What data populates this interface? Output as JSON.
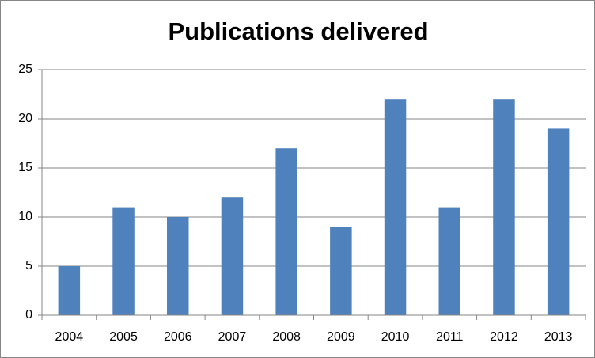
{
  "chart_data": {
    "type": "bar",
    "title": "Publications delivered",
    "categories": [
      "2004",
      "2005",
      "2006",
      "2007",
      "2008",
      "2009",
      "2010",
      "2011",
      "2012",
      "2013"
    ],
    "values": [
      5,
      11,
      10,
      12,
      17,
      9,
      22,
      11,
      22,
      19
    ],
    "color": "#4f81bd",
    "ylim": [
      0,
      25
    ],
    "yticks": [
      0,
      5,
      10,
      15,
      20,
      25
    ],
    "grid": true
  }
}
